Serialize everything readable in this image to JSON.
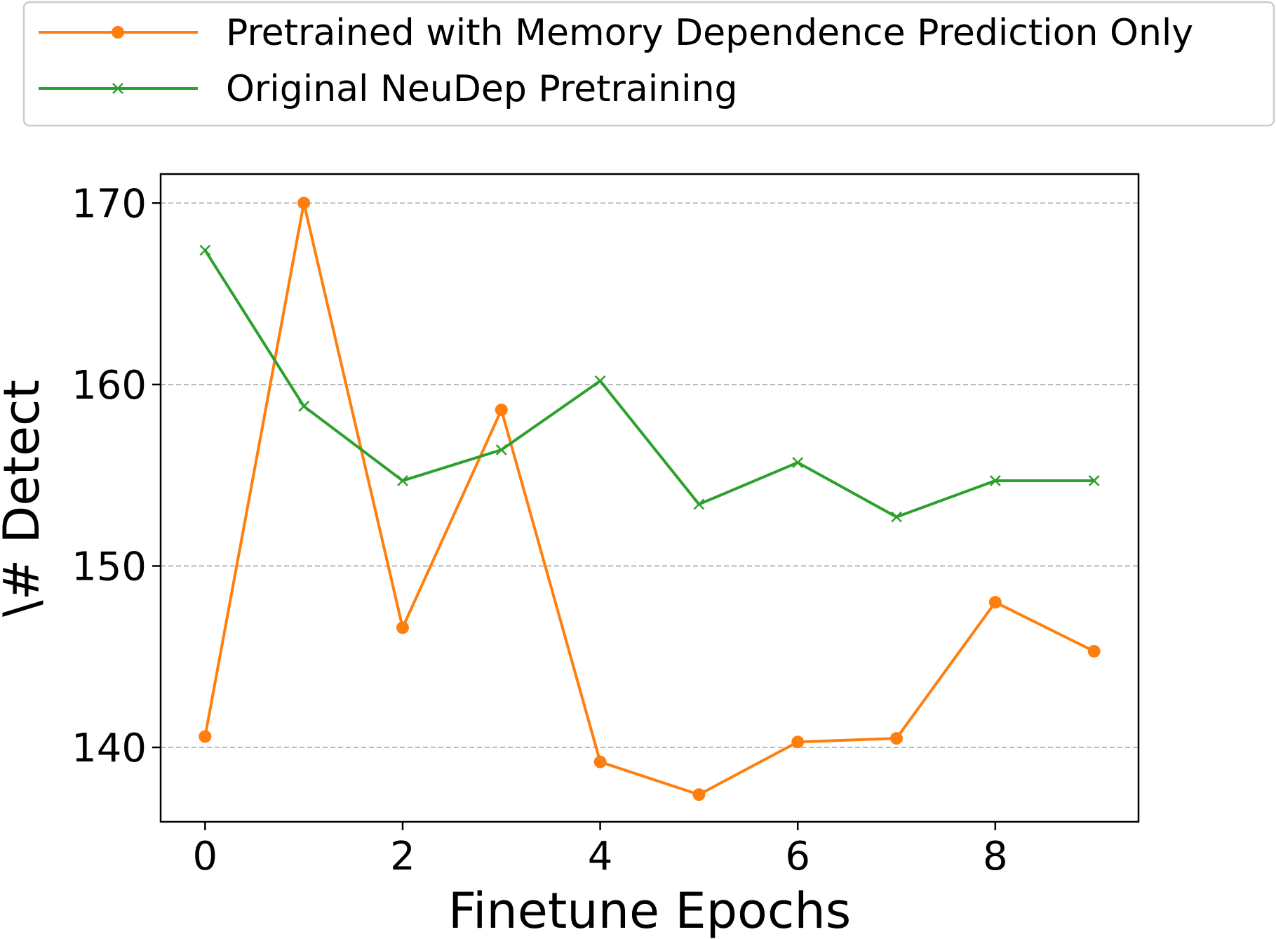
{
  "chart_data": {
    "type": "line",
    "x": [
      0,
      1,
      2,
      3,
      4,
      5,
      6,
      7,
      8,
      9
    ],
    "series": [
      {
        "name": "Pretrained with Memory Dependence Prediction Only",
        "color": "#ff7f0e",
        "marker": "circle",
        "values": [
          140.6,
          170.0,
          146.6,
          158.6,
          139.2,
          137.4,
          140.3,
          140.5,
          148.0,
          145.3
        ]
      },
      {
        "name": "Original NeuDep Pretraining",
        "color": "#2ca02c",
        "marker": "x",
        "values": [
          167.4,
          158.8,
          154.7,
          156.4,
          160.2,
          153.4,
          155.7,
          152.7,
          154.7,
          154.7
        ]
      }
    ],
    "xlabel": "Finetune Epochs",
    "ylabel": "\\# Detect",
    "xlim": [
      -0.45,
      9.45
    ],
    "ylim": [
      135.9,
      171.6
    ],
    "xticks": [
      "0",
      "2",
      "4",
      "6",
      "8"
    ],
    "yticks": [
      "140",
      "150",
      "160",
      "170"
    ],
    "grid": "y-dashed",
    "legend_position": "top"
  }
}
